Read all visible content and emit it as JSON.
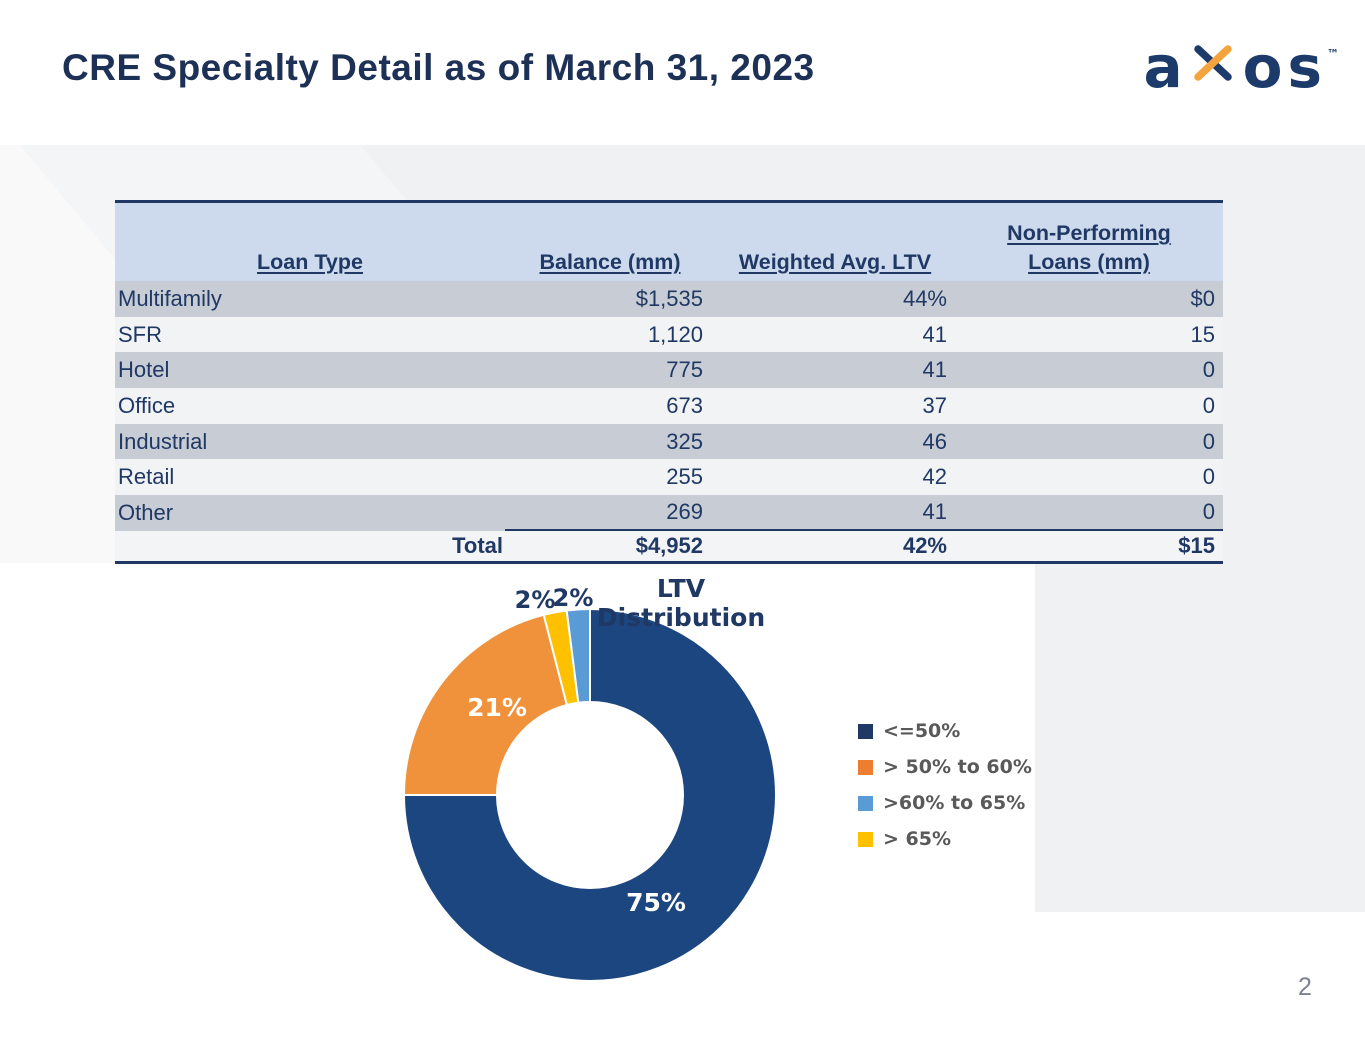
{
  "slide": {
    "title": "CRE Specialty Detail as of March 31, 2023",
    "page_number": "2"
  },
  "logo": {
    "letter_a": "a",
    "letter_o": "o",
    "letter_s": "s",
    "trademark": "™",
    "navy": "#1c3a6a",
    "orange": "#f5a33c"
  },
  "table": {
    "headers": {
      "loan_type": "Loan Type",
      "balance": "Balance (mm)",
      "ltv": "Weighted Avg. LTV",
      "npl_line1": "Non-Performing",
      "npl_line2": "Loans (mm)"
    },
    "rows": [
      {
        "loan_type": "Multifamily",
        "balance": "$1,535",
        "ltv": "44%",
        "npl": "$0"
      },
      {
        "loan_type": "SFR",
        "balance": "1,120",
        "ltv": "41",
        "npl": "15"
      },
      {
        "loan_type": "Hotel",
        "balance": "775",
        "ltv": "41",
        "npl": "0"
      },
      {
        "loan_type": "Office",
        "balance": "673",
        "ltv": "37",
        "npl": "0"
      },
      {
        "loan_type": "Industrial",
        "balance": "325",
        "ltv": "46",
        "npl": "0"
      },
      {
        "loan_type": "Retail",
        "balance": "255",
        "ltv": "42",
        "npl": "0"
      },
      {
        "loan_type": "Other",
        "balance": "269",
        "ltv": "41",
        "npl": "0"
      }
    ],
    "total": {
      "label": "Total",
      "balance": "$4,952",
      "ltv": "42%",
      "npl": "$15"
    }
  },
  "chart_data": {
    "type": "pie",
    "variant": "donut",
    "title": "LTV Distribution",
    "legend_position": "right",
    "slices": [
      {
        "label": "<=50%",
        "value_pct": 75,
        "color": "#1b4680",
        "data_label": "75%",
        "data_label_color": "#ffffff"
      },
      {
        "label": "> 50% to 60%",
        "value_pct": 21,
        "color": "#f0913c",
        "data_label": "21%",
        "data_label_color": "#ffffff"
      },
      {
        "label": "> 65%",
        "value_pct": 2,
        "color": "#ffc000",
        "data_label": "2%",
        "data_label_color": "#1f3864"
      },
      {
        "label": ">60% to 65%",
        "value_pct": 2,
        "color": "#5b9bd5",
        "data_label": "2%",
        "data_label_color": "#1f3864"
      }
    ],
    "legend_entries": [
      {
        "label": "<=50%",
        "color": "#1f3864"
      },
      {
        "label": "> 50% to 60%",
        "color": "#ed7d31"
      },
      {
        "label": ">60% to 65%",
        "color": "#5b9bd5"
      },
      {
        "label": "> 65%",
        "color": "#ffc000"
      }
    ]
  }
}
